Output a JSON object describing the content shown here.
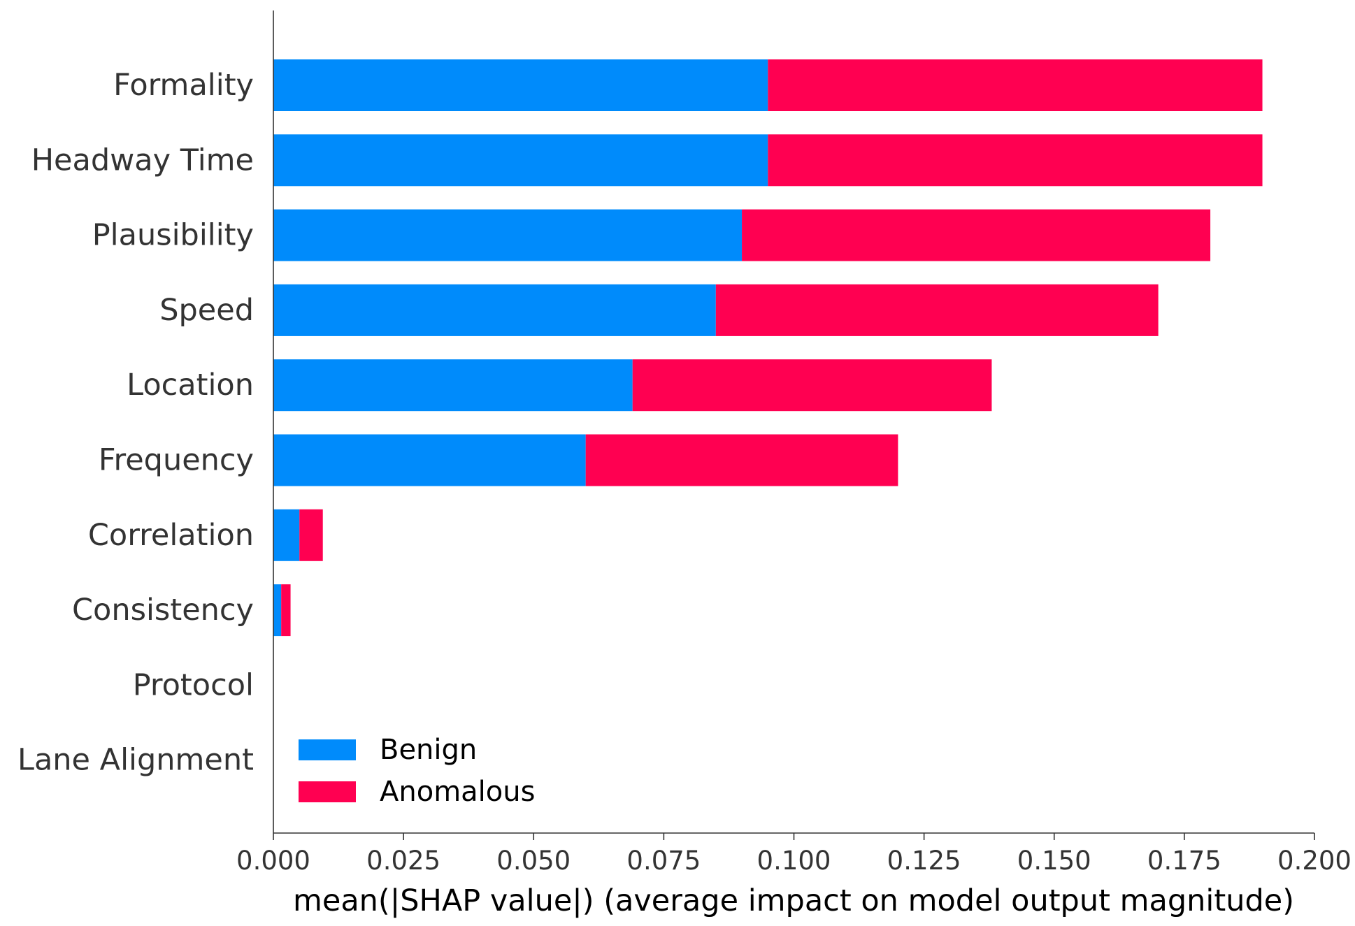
{
  "chart_data": {
    "type": "bar",
    "orientation": "horizontal",
    "stacked": true,
    "title": "",
    "xlabel": "mean(|SHAP value|) (average impact on model output magnitude)",
    "ylabel": "",
    "xlim": [
      0,
      0.2
    ],
    "xticks": [
      "0.000",
      "0.025",
      "0.050",
      "0.075",
      "0.100",
      "0.125",
      "0.150",
      "0.175",
      "0.200"
    ],
    "grid": false,
    "legend_position": "lower-left",
    "categories": [
      "Formality",
      "Headway Time",
      "Plausibility",
      "Speed",
      "Location",
      "Frequency",
      "Correlation",
      "Consistency",
      "Protocol",
      "Lane Alignment"
    ],
    "series": [
      {
        "name": "Benign",
        "color": "#008bfb",
        "values": [
          0.095,
          0.095,
          0.09,
          0.085,
          0.069,
          0.06,
          0.005,
          0.0015,
          0.0,
          0.0
        ]
      },
      {
        "name": "Anomalous",
        "color": "#ff0051",
        "values": [
          0.095,
          0.095,
          0.09,
          0.085,
          0.069,
          0.06,
          0.0045,
          0.0018,
          0.0,
          0.0
        ]
      }
    ]
  }
}
